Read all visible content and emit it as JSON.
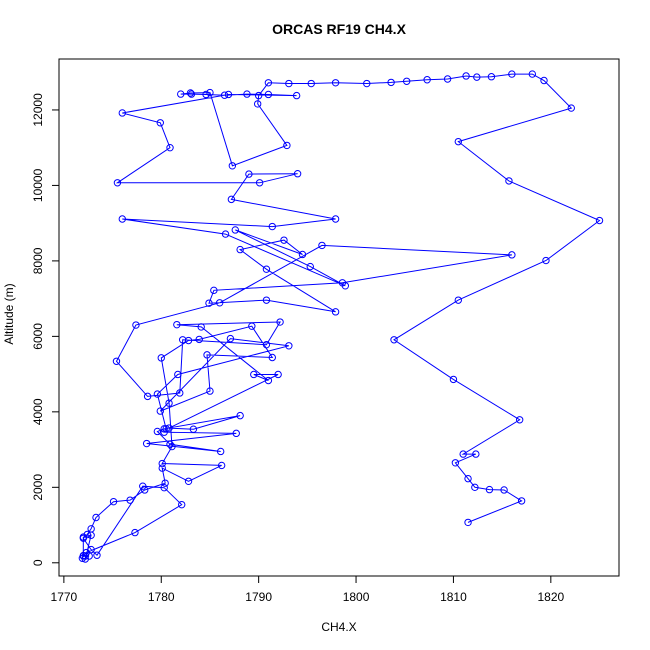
{
  "chart_data": {
    "type": "line",
    "title": "ORCAS RF19 CH4.X",
    "xlabel": "CH4.X",
    "ylabel": "Altitude (m)",
    "xlim": [
      1769.5,
      1827
    ],
    "ylim": [
      -350,
      13350
    ],
    "x_ticks": [
      1770,
      1780,
      1790,
      1800,
      1810,
      1820
    ],
    "y_ticks": [
      0,
      2000,
      4000,
      6000,
      8000,
      10000,
      12000
    ],
    "grid": false,
    "legend": "none",
    "line_color": "#0000ff",
    "marker": "open-circle",
    "series": [
      {
        "x": [
          1811.5,
          1817.0,
          1815.2,
          1813.7,
          1812.2,
          1811.5,
          1810.2,
          1812.3,
          1811.0,
          1816.8,
          1810.0,
          1803.9,
          1810.5,
          1819.5,
          1825.0,
          1815.7,
          1810.5,
          1822.1,
          1819.3,
          1818.1,
          1816.0,
          1813.9,
          1812.4,
          1811.3,
          1809.4,
          1807.3,
          1805.2,
          1803.6,
          1801.1,
          1797.9,
          1795.4,
          1793.1,
          1791.0,
          1790.0,
          1789.9,
          1792.9,
          1787.3,
          1785.0,
          1783.0,
          1782.0,
          1783.1,
          1784.6,
          1786.5,
          1788.8,
          1791.0,
          1793.9,
          1786.9,
          1776.0,
          1779.9,
          1780.9,
          1775.5,
          1790.1,
          1794.0,
          1789.0,
          1787.2,
          1797.9,
          1791.4,
          1776.0,
          1786.6,
          1798.9,
          1795.3,
          1787.6,
          1794.5,
          1792.6,
          1788.1,
          1790.8,
          1797.9,
          1790.8,
          1784.9,
          1785.4,
          1798.6,
          1816.0,
          1796.5,
          1786.0,
          1777.4,
          1775.4,
          1778.6,
          1781.9,
          1782.2,
          1790.8,
          1792.2,
          1781.6,
          1784.1,
          1791.0,
          1789.5,
          1792.0,
          1780.8,
          1783.3,
          1788.1,
          1780.3,
          1779.6,
          1780.9,
          1786.1,
          1778.5,
          1787.7,
          1780.3,
          1780.5,
          1779.6,
          1781.7,
          1793.1,
          1787.1,
          1779.9,
          1785.0,
          1784.7,
          1791.4,
          1789.3,
          1783.9,
          1782.8,
          1780.0,
          1780.8,
          1781.1,
          1780.1,
          1786.2,
          1782.8,
          1780.1,
          1780.4,
          1778.3,
          1776.8,
          1775.1,
          1773.3,
          1772.8,
          1772.4,
          1772.0,
          1772.8,
          1773.4,
          1778.1,
          1780.3,
          1782.1,
          1777.3,
          1772.3,
          1772.0,
          1772.6,
          1772.2,
          1772.0,
          1772.0,
          1772.8,
          1772.2,
          1771.9
        ],
        "y": [
          1070,
          1640,
          1930,
          1940,
          2000,
          2230,
          2650,
          2880,
          2880,
          3790,
          4860,
          5910,
          6960,
          8010,
          9070,
          10120,
          11160,
          12050,
          12780,
          12950,
          12950,
          12880,
          12870,
          12900,
          12820,
          12800,
          12760,
          12730,
          12700,
          12720,
          12700,
          12700,
          12720,
          12380,
          12160,
          11060,
          10520,
          12460,
          12450,
          12420,
          12420,
          12410,
          12390,
          12420,
          12410,
          12380,
          12410,
          11920,
          11660,
          11000,
          10070,
          10070,
          10310,
          10300,
          9630,
          9110,
          8910,
          9110,
          8710,
          7340,
          7850,
          8820,
          8170,
          8550,
          8300,
          7780,
          6650,
          6960,
          6880,
          7220,
          7420,
          8160,
          8410,
          6890,
          6300,
          5340,
          4410,
          4500,
          5910,
          5780,
          6380,
          6310,
          6250,
          4830,
          4990,
          4990,
          3570,
          3540,
          3900,
          3550,
          3480,
          3140,
          2950,
          3160,
          3430,
          3460,
          3550,
          4470,
          4990,
          5750,
          5940,
          4020,
          4550,
          5510,
          5440,
          6270,
          5920,
          5890,
          5430,
          4230,
          3080,
          2630,
          2580,
          2160,
          2510,
          2110,
          1930,
          1660,
          1620,
          1200,
          900,
          750,
          650,
          350,
          200,
          2030,
          1990,
          1540,
          800,
          270,
          190,
          180,
          180,
          180,
          680,
          730,
          100,
          120
        ]
      }
    ]
  }
}
